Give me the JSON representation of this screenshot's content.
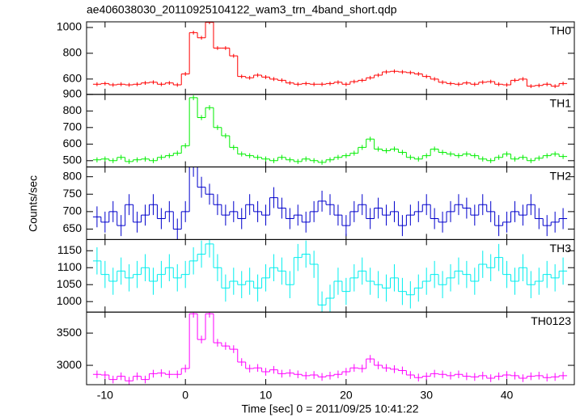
{
  "chart_data": {
    "type": "step",
    "title": "ae406038030_20110925104122_wam3_trn_4band_short.qdp",
    "x_label": "Time [sec] 0 = 2011/09/25 10:41:22",
    "y_label": "Counts/sec",
    "xlim": [
      -12.3,
      48.4
    ],
    "xticks": [
      -10,
      0,
      10,
      20,
      30,
      40
    ],
    "x": [
      -11,
      -10,
      -9,
      -8,
      -7,
      -6,
      -5,
      -4,
      -3,
      -2,
      -1,
      0,
      1,
      2,
      3,
      4,
      5,
      6,
      7,
      8,
      9,
      10,
      11,
      12,
      13,
      14,
      15,
      16,
      17,
      18,
      19,
      20,
      21,
      22,
      23,
      24,
      25,
      26,
      27,
      28,
      29,
      30,
      31,
      32,
      33,
      34,
      35,
      36,
      37,
      38,
      39,
      40,
      41,
      42,
      43,
      44,
      45,
      46,
      47
    ],
    "series": [
      {
        "name": "TH0",
        "color": "#ff0000",
        "error": 15,
        "ylim": [
          481,
          1044
        ],
        "yticks": [
          600,
          800,
          1000
        ],
        "values": [
          560,
          565,
          555,
          560,
          555,
          560,
          570,
          575,
          560,
          570,
          555,
          640,
          960,
          920,
          1040,
          840,
          840,
          780,
          620,
          610,
          630,
          615,
          600,
          590,
          570,
          560,
          565,
          560,
          560,
          565,
          575,
          560,
          580,
          590,
          610,
          630,
          655,
          660,
          655,
          650,
          640,
          620,
          600,
          575,
          565,
          560,
          570,
          560,
          575,
          580,
          560,
          555,
          590,
          600,
          545,
          550,
          560,
          545,
          565
        ]
      },
      {
        "name": "TH1",
        "color": "#00ee00",
        "error": 15,
        "ylim": [
          462,
          900
        ],
        "yticks": [
          500,
          600,
          700,
          800,
          900
        ],
        "values": [
          505,
          510,
          500,
          520,
          495,
          505,
          510,
          500,
          520,
          530,
          545,
          590,
          880,
          760,
          820,
          700,
          650,
          580,
          540,
          530,
          520,
          510,
          500,
          520,
          505,
          495,
          510,
          500,
          490,
          505,
          520,
          530,
          545,
          580,
          630,
          570,
          560,
          570,
          550,
          520,
          510,
          530,
          570,
          550,
          540,
          530,
          540,
          530,
          510,
          500,
          520,
          540,
          510,
          520,
          500,
          515,
          530,
          540,
          525
        ]
      },
      {
        "name": "TH2",
        "color": "#0000cc",
        "error": 30,
        "ylim": [
          620,
          828
        ],
        "yticks": [
          650,
          700,
          750,
          800
        ],
        "values": [
          685,
          670,
          700,
          660,
          720,
          670,
          690,
          720,
          680,
          700,
          650,
          700,
          830,
          770,
          750,
          720,
          690,
          700,
          680,
          720,
          700,
          690,
          740,
          710,
          680,
          690,
          670,
          700,
          730,
          720,
          690,
          660,
          700,
          720,
          680,
          710,
          690,
          700,
          660,
          690,
          700,
          720,
          680,
          670,
          700,
          720,
          710,
          690,
          720,
          700,
          660,
          670,
          700,
          690,
          720,
          680,
          660,
          670,
          680
        ]
      },
      {
        "name": "TH3",
        "color": "#00eeee",
        "error": 40,
        "ylim": [
          969,
          1183
        ],
        "yticks": [
          1000,
          1050,
          1100,
          1150
        ],
        "values": [
          1120,
          1080,
          1060,
          1090,
          1070,
          1080,
          1100,
          1060,
          1080,
          1100,
          1070,
          1080,
          1120,
          1140,
          1170,
          1100,
          1040,
          1060,
          1050,
          1060,
          1040,
          1070,
          1100,
          1090,
          1050,
          1130,
          1140,
          1110,
          990,
          1010,
          1060,
          1030,
          1070,
          1090,
          1060,
          1050,
          1040,
          1070,
          1030,
          1020,
          1040,
          1060,
          1080,
          1050,
          1070,
          1090,
          1080,
          1060,
          1110,
          1100,
          1130,
          1080,
          1060,
          1100,
          1050,
          1060,
          1080,
          1070,
          1090
        ]
      },
      {
        "name": "TH0123",
        "color": "#ff00ff",
        "error": 60,
        "ylim": [
          2700,
          3825
        ],
        "yticks": [
          3000,
          3500
        ],
        "values": [
          2860,
          2850,
          2780,
          2830,
          2760,
          2830,
          2780,
          2870,
          2880,
          2860,
          2860,
          2950,
          3800,
          3400,
          3800,
          3350,
          3300,
          3250,
          3050,
          2950,
          2960,
          2900,
          2930,
          2870,
          2880,
          2860,
          2840,
          2850,
          2820,
          2840,
          2860,
          2900,
          2960,
          2950,
          3100,
          3000,
          2960,
          2940,
          2920,
          2850,
          2810,
          2830,
          2870,
          2860,
          2840,
          2860,
          2830,
          2820,
          2840,
          2800,
          2830,
          2850,
          2840,
          2800,
          2830,
          2840,
          2810,
          2820,
          2840
        ]
      }
    ]
  }
}
